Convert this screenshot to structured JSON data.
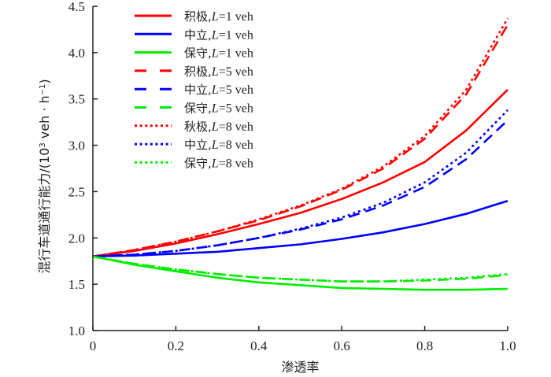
{
  "chart_data": {
    "type": "line",
    "title": "",
    "xlabel": "渗透率",
    "ylabel": "混行车道通行能力/(10³ veh·h⁻¹)",
    "ylabel_main": "混行车道通行能力/(10",
    "ylabel_sup": "3",
    "ylabel_mid": " veh · h",
    "ylabel_sup2": "−1",
    "ylabel_end": ")",
    "xlim": [
      0,
      1.0
    ],
    "ylim": [
      1.0,
      4.5
    ],
    "x_ticks": [
      0,
      0.2,
      0.4,
      0.6,
      0.8,
      1.0
    ],
    "x_tick_labels": [
      "0",
      "0.2",
      "0.4",
      "0.6",
      "0.8",
      "1.0"
    ],
    "y_ticks": [
      1.0,
      1.5,
      2.0,
      2.5,
      3.0,
      3.5,
      4.0,
      4.5
    ],
    "y_tick_labels": [
      "1.0",
      "1.5",
      "2.0",
      "2.5",
      "3.0",
      "3.5",
      "4.0",
      "4.5"
    ],
    "grid": false,
    "legend_position": "top-left",
    "x": [
      0,
      0.1,
      0.2,
      0.3,
      0.4,
      0.5,
      0.6,
      0.7,
      0.8,
      0.9,
      1.0
    ],
    "series": [
      {
        "name": "积极,L=1 veh",
        "label_cn": "积极,",
        "label_L": "L",
        "label_rest": "=1 veh",
        "color": "#ff0000",
        "style": "solid",
        "values": [
          1.8,
          1.86,
          1.94,
          2.04,
          2.15,
          2.27,
          2.42,
          2.6,
          2.82,
          3.16,
          3.6
        ]
      },
      {
        "name": "中立,L=1 veh",
        "label_cn": "中立,",
        "label_L": "L",
        "label_rest": "=1 veh",
        "color": "#0000ff",
        "style": "solid",
        "values": [
          1.8,
          1.81,
          1.83,
          1.85,
          1.89,
          1.93,
          1.99,
          2.06,
          2.15,
          2.26,
          2.4
        ]
      },
      {
        "name": "保守,L=1 veh",
        "label_cn": "保守,",
        "label_L": "L",
        "label_rest": "=1 veh",
        "color": "#00ee00",
        "style": "solid",
        "values": [
          1.8,
          1.71,
          1.64,
          1.57,
          1.52,
          1.49,
          1.46,
          1.45,
          1.44,
          1.44,
          1.45
        ]
      },
      {
        "name": "积极,L=5 veh",
        "label_cn": "积极,",
        "label_L": "L",
        "label_rest": "=5 veh",
        "color": "#ff0000",
        "style": "dashed",
        "values": [
          1.8,
          1.87,
          1.96,
          2.07,
          2.19,
          2.34,
          2.52,
          2.75,
          3.07,
          3.55,
          4.3
        ]
      },
      {
        "name": "中立,L=5 veh",
        "label_cn": "中立,",
        "label_L": "L",
        "label_rest": "=5 veh",
        "color": "#0000ff",
        "style": "dashed",
        "values": [
          1.8,
          1.82,
          1.86,
          1.92,
          2.0,
          2.09,
          2.2,
          2.35,
          2.55,
          2.85,
          3.27
        ]
      },
      {
        "name": "保守,L=5 veh",
        "label_cn": "保守,",
        "label_L": "L",
        "label_rest": "=5 veh",
        "color": "#00ee00",
        "style": "dashed",
        "values": [
          1.8,
          1.72,
          1.66,
          1.61,
          1.57,
          1.55,
          1.53,
          1.53,
          1.54,
          1.56,
          1.6
        ]
      },
      {
        "name": "秋极,L=8 veh",
        "label_cn": "秋极,",
        "label_L": "L",
        "label_rest": "=8 veh",
        "color": "#ff0000",
        "style": "dotted",
        "values": [
          1.8,
          1.87,
          1.96,
          2.07,
          2.2,
          2.35,
          2.53,
          2.77,
          3.1,
          3.6,
          4.37
        ]
      },
      {
        "name": "中立,L=8 veh",
        "label_cn": "中立,",
        "label_L": "L",
        "label_rest": "=8 veh",
        "color": "#0000ff",
        "style": "dotted",
        "values": [
          1.8,
          1.82,
          1.86,
          1.92,
          2.0,
          2.1,
          2.22,
          2.38,
          2.6,
          2.92,
          3.38
        ]
      },
      {
        "name": "保守,L=8 veh",
        "label_cn": "保守,",
        "label_L": "L",
        "label_rest": "=8 veh",
        "color": "#00ee00",
        "style": "dotted",
        "values": [
          1.8,
          1.72,
          1.66,
          1.61,
          1.57,
          1.55,
          1.53,
          1.53,
          1.55,
          1.57,
          1.61
        ]
      }
    ]
  }
}
